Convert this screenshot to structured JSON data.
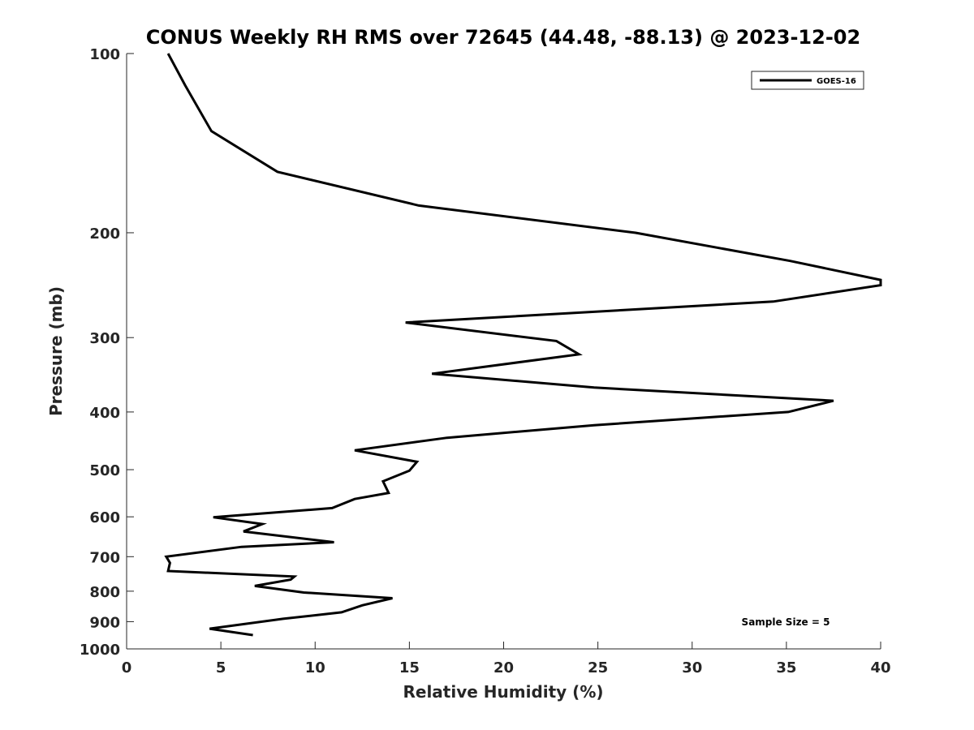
{
  "chart_data": {
    "type": "line",
    "title": "CONUS Weekly RH RMS over 72645 (44.48, -88.13) @ 2023-12-02",
    "xlabel": "Relative Humidity (%)",
    "ylabel": "Pressure (mb)",
    "xlim": [
      0,
      40
    ],
    "ylim": [
      100,
      1000
    ],
    "y_scale": "log",
    "y_reversed": true,
    "xticks": [
      0,
      5,
      10,
      15,
      20,
      25,
      30,
      35,
      40
    ],
    "yticks": [
      100,
      200,
      300,
      400,
      500,
      600,
      700,
      800,
      900,
      1000
    ],
    "grid": false,
    "legend_position": "top-right",
    "annotation": "Sample Size = 5",
    "series": [
      {
        "name": "GOES-16",
        "color": "#000000",
        "x": [
          2.2,
          3.1,
          4.5,
          8.0,
          15.5,
          27.0,
          35.2,
          40.0,
          40.0,
          34.3,
          14.8,
          22.8,
          24.0,
          16.2,
          24.8,
          37.5,
          35.1,
          24.8,
          17.0,
          12.1,
          15.4,
          15.0,
          13.6,
          13.9,
          12.1,
          10.9,
          4.6,
          7.2,
          6.2,
          11.0,
          6.1,
          2.1,
          2.3,
          2.2,
          8.9,
          8.7,
          6.8,
          9.4,
          14.1,
          12.5,
          11.4,
          8.3,
          4.4,
          6.7
        ],
        "y": [
          100,
          113,
          135,
          158,
          180,
          200,
          223,
          240,
          245,
          261,
          283,
          304,
          320,
          345,
          364,
          383,
          400,
          421,
          442,
          464,
          485,
          502,
          523,
          547,
          560,
          580,
          601,
          617,
          635,
          662,
          674,
          700,
          717,
          740,
          756,
          765,
          784,
          804,
          822,
          845,
          868,
          890,
          925,
          948
        ]
      }
    ]
  }
}
